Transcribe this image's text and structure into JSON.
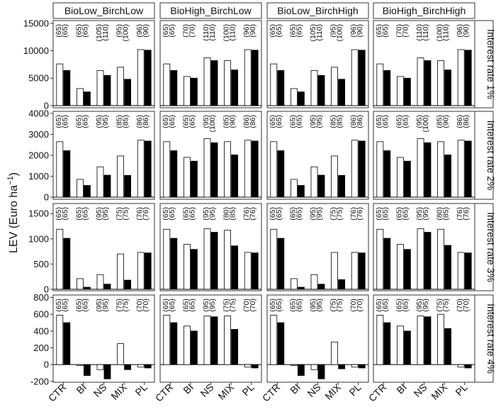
{
  "chart_data": {
    "type": "bar",
    "layout": "facet-grid",
    "ylabel": "LEV (Euro ha",
    "ylabel_sup": "−1",
    "ylabel_close": ")",
    "categories": [
      "CTR",
      "BI",
      "NS",
      "MIX",
      "PL"
    ],
    "columns": [
      "BioLow_BirchLow",
      "BioHigh_BirchLow",
      "BioLow_BirchHigh",
      "BioHigh_BirchHigh"
    ],
    "series": [
      {
        "fill": "#ffffff"
      },
      {
        "fill": "#000000"
      }
    ],
    "rows": [
      {
        "label": "Interest rate 1%",
        "ylim": [
          -400,
          15500
        ],
        "yticks": [
          0,
          5000,
          10000,
          15000
        ],
        "panels": [
          {
            "values": [
              [
                7600,
                6400
              ],
              [
                3100,
                2500
              ],
              [
                6400,
                5500
              ],
              [
                7000,
                4800
              ],
              [
                10200,
                10100
              ]
            ],
            "annotations": [
              [
                "(65)",
                "(65)"
              ],
              [
                "(65)",
                "(65)"
              ],
              [
                "(105)",
                "(110)"
              ],
              [
                "(95)",
                "(100)"
              ],
              [
                "(96)",
                "(90)"
              ]
            ]
          },
          {
            "values": [
              [
                7600,
                6400
              ],
              [
                5300,
                5000
              ],
              [
                8700,
                8200
              ],
              [
                8200,
                6500
              ],
              [
                10200,
                10100
              ]
            ],
            "annotations": [
              [
                "(65)",
                "(65)"
              ],
              [
                "(70)",
                "(70)"
              ],
              [
                "(110)",
                "(110)"
              ],
              [
                "(100)",
                "(110)"
              ],
              [
                "(96)",
                "(90)"
              ]
            ]
          },
          {
            "values": [
              [
                7600,
                6400
              ],
              [
                3100,
                2500
              ],
              [
                6400,
                5500
              ],
              [
                7000,
                4800
              ],
              [
                10200,
                10100
              ]
            ],
            "annotations": [
              [
                "(65)",
                "(65)"
              ],
              [
                "(65)",
                "(65)"
              ],
              [
                "(105)",
                "(110)"
              ],
              [
                "(95)",
                "(100)"
              ],
              [
                "(96)",
                "(90)"
              ]
            ]
          },
          {
            "values": [
              [
                7600,
                6400
              ],
              [
                5300,
                5000
              ],
              [
                8700,
                8200
              ],
              [
                8200,
                6500
              ],
              [
                10200,
                10100
              ]
            ],
            "annotations": [
              [
                "(65)",
                "(65)"
              ],
              [
                "(70)",
                "(70)"
              ],
              [
                "(110)",
                "(110)"
              ],
              [
                "(100)",
                "(110)"
              ],
              [
                "(96)",
                "(90)"
              ]
            ]
          }
        ]
      },
      {
        "label": "Interest rate 2%",
        "ylim": [
          -100,
          4100
        ],
        "yticks": [
          0,
          1000,
          2000,
          3000,
          4000
        ],
        "panels": [
          {
            "values": [
              [
                2650,
                2220
              ],
              [
                850,
                560
              ],
              [
                1450,
                1050
              ],
              [
                1970,
                1040
              ],
              [
                2720,
                2680
              ]
            ],
            "annotations": [
              [
                "(65)",
                "(65)"
              ],
              [
                "(65)",
                "(65)"
              ],
              [
                "(95)",
                "(95)"
              ],
              [
                "(85)",
                "(85)"
              ],
              [
                "(86)",
                "(86)"
              ]
            ]
          },
          {
            "values": [
              [
                2650,
                2220
              ],
              [
                1900,
                1720
              ],
              [
                2800,
                2600
              ],
              [
                2650,
                2020
              ],
              [
                2720,
                2680
              ]
            ],
            "annotations": [
              [
                "(65)",
                "(65)"
              ],
              [
                "(65)",
                "(65)"
              ],
              [
                "(95)",
                "(100)"
              ],
              [
                "(85)",
                "(90)"
              ],
              [
                "(86)",
                "(86)"
              ]
            ]
          },
          {
            "values": [
              [
                2650,
                2220
              ],
              [
                850,
                560
              ],
              [
                1450,
                1050
              ],
              [
                1970,
                1040
              ],
              [
                2720,
                2680
              ]
            ],
            "annotations": [
              [
                "(65)",
                "(65)"
              ],
              [
                "(65)",
                "(65)"
              ],
              [
                "(95)",
                "(95)"
              ],
              [
                "(85)",
                "(85)"
              ],
              [
                "(86)",
                "(86)"
              ]
            ]
          },
          {
            "values": [
              [
                2650,
                2220
              ],
              [
                1900,
                1720
              ],
              [
                2800,
                2600
              ],
              [
                2650,
                2020
              ],
              [
                2720,
                2680
              ]
            ],
            "annotations": [
              [
                "(65)",
                "(65)"
              ],
              [
                "(65)",
                "(65)"
              ],
              [
                "(95)",
                "(100)"
              ],
              [
                "(85)",
                "(90)"
              ],
              [
                "(86)",
                "(86)"
              ]
            ]
          }
        ]
      },
      {
        "label": "Interest rate 3%",
        "ylim": [
          -30,
          1700
        ],
        "yticks": [
          0,
          500,
          1000,
          1500
        ],
        "panels": [
          {
            "values": [
              [
                1190,
                1010
              ],
              [
                210,
                40
              ],
              [
                290,
                100
              ],
              [
                700,
                180
              ],
              [
                730,
                720
              ]
            ],
            "annotations": [
              [
                "(65)",
                "(65)"
              ],
              [
                "(65)",
                "(65)"
              ],
              [
                "(95)",
                "(95)"
              ],
              [
                "(75)",
                "(75)"
              ],
              [
                "(76)",
                "(76)"
              ]
            ]
          },
          {
            "values": [
              [
                1190,
                1010
              ],
              [
                890,
                790
              ],
              [
                1200,
                1130
              ],
              [
                1170,
                860
              ],
              [
                730,
                720
              ]
            ],
            "annotations": [
              [
                "(65)",
                "(65)"
              ],
              [
                "(65)",
                "(65)"
              ],
              [
                "(95)",
                "(95)"
              ],
              [
                "(80)",
                "(85)"
              ],
              [
                "(76)",
                "(76)"
              ]
            ]
          },
          {
            "values": [
              [
                1190,
                1010
              ],
              [
                210,
                40
              ],
              [
                290,
                100
              ],
              [
                730,
                190
              ],
              [
                730,
                720
              ]
            ],
            "annotations": [
              [
                "(65)",
                "(65)"
              ],
              [
                "(65)",
                "(65)"
              ],
              [
                "(95)",
                "(95)"
              ],
              [
                "(75)",
                "(75)"
              ],
              [
                "(76)",
                "(76)"
              ]
            ]
          },
          {
            "values": [
              [
                1190,
                1010
              ],
              [
                890,
                790
              ],
              [
                1200,
                1130
              ],
              [
                1190,
                870
              ],
              [
                730,
                720
              ]
            ],
            "annotations": [
              [
                "(65)",
                "(65)"
              ],
              [
                "(65)",
                "(65)"
              ],
              [
                "(95)",
                "(95)"
              ],
              [
                "(80)",
                "(85)"
              ],
              [
                "(76)",
                "(76)"
              ]
            ]
          }
        ]
      },
      {
        "label": "Interest rate 4%",
        "ylim": [
          -210,
          830
        ],
        "yticks": [
          -200,
          0,
          200,
          400,
          600,
          800
        ],
        "panels": [
          {
            "values": [
              [
                590,
                500
              ],
              [
                -10,
                -130
              ],
              [
                -60,
                -170
              ],
              [
                250,
                -60
              ],
              [
                -30,
                -40
              ]
            ],
            "annotations": [
              [
                "(65)",
                "(65)"
              ],
              [
                "(65)",
                "(65)"
              ],
              [
                "(95)",
                "(95)"
              ],
              [
                "(75)",
                "(75)"
              ],
              [
                "(70)",
                "(70)"
              ]
            ]
          },
          {
            "values": [
              [
                590,
                500
              ],
              [
                460,
                400
              ],
              [
                580,
                570
              ],
              [
                580,
                420
              ],
              [
                -30,
                -40
              ]
            ],
            "annotations": [
              [
                "(65)",
                "(65)"
              ],
              [
                "(65)",
                "(65)"
              ],
              [
                "(95)",
                "(95)"
              ],
              [
                "(75)",
                "(75)"
              ],
              [
                "(70)",
                "(70)"
              ]
            ]
          },
          {
            "values": [
              [
                590,
                500
              ],
              [
                -10,
                -130
              ],
              [
                -60,
                -170
              ],
              [
                270,
                -50
              ],
              [
                -30,
                -40
              ]
            ],
            "annotations": [
              [
                "(65)",
                "(65)"
              ],
              [
                "(65)",
                "(65)"
              ],
              [
                "(95)",
                "(95)"
              ],
              [
                "(75)",
                "(75)"
              ],
              [
                "(70)",
                "(70)"
              ]
            ]
          },
          {
            "values": [
              [
                590,
                500
              ],
              [
                460,
                400
              ],
              [
                580,
                570
              ],
              [
                600,
                430
              ],
              [
                -30,
                -40
              ]
            ],
            "annotations": [
              [
                "(65)",
                "(65)"
              ],
              [
                "(65)",
                "(65)"
              ],
              [
                "(95)",
                "(95)"
              ],
              [
                "(75)",
                "(75)"
              ],
              [
                "(70)",
                "(70)"
              ]
            ]
          }
        ]
      }
    ]
  }
}
